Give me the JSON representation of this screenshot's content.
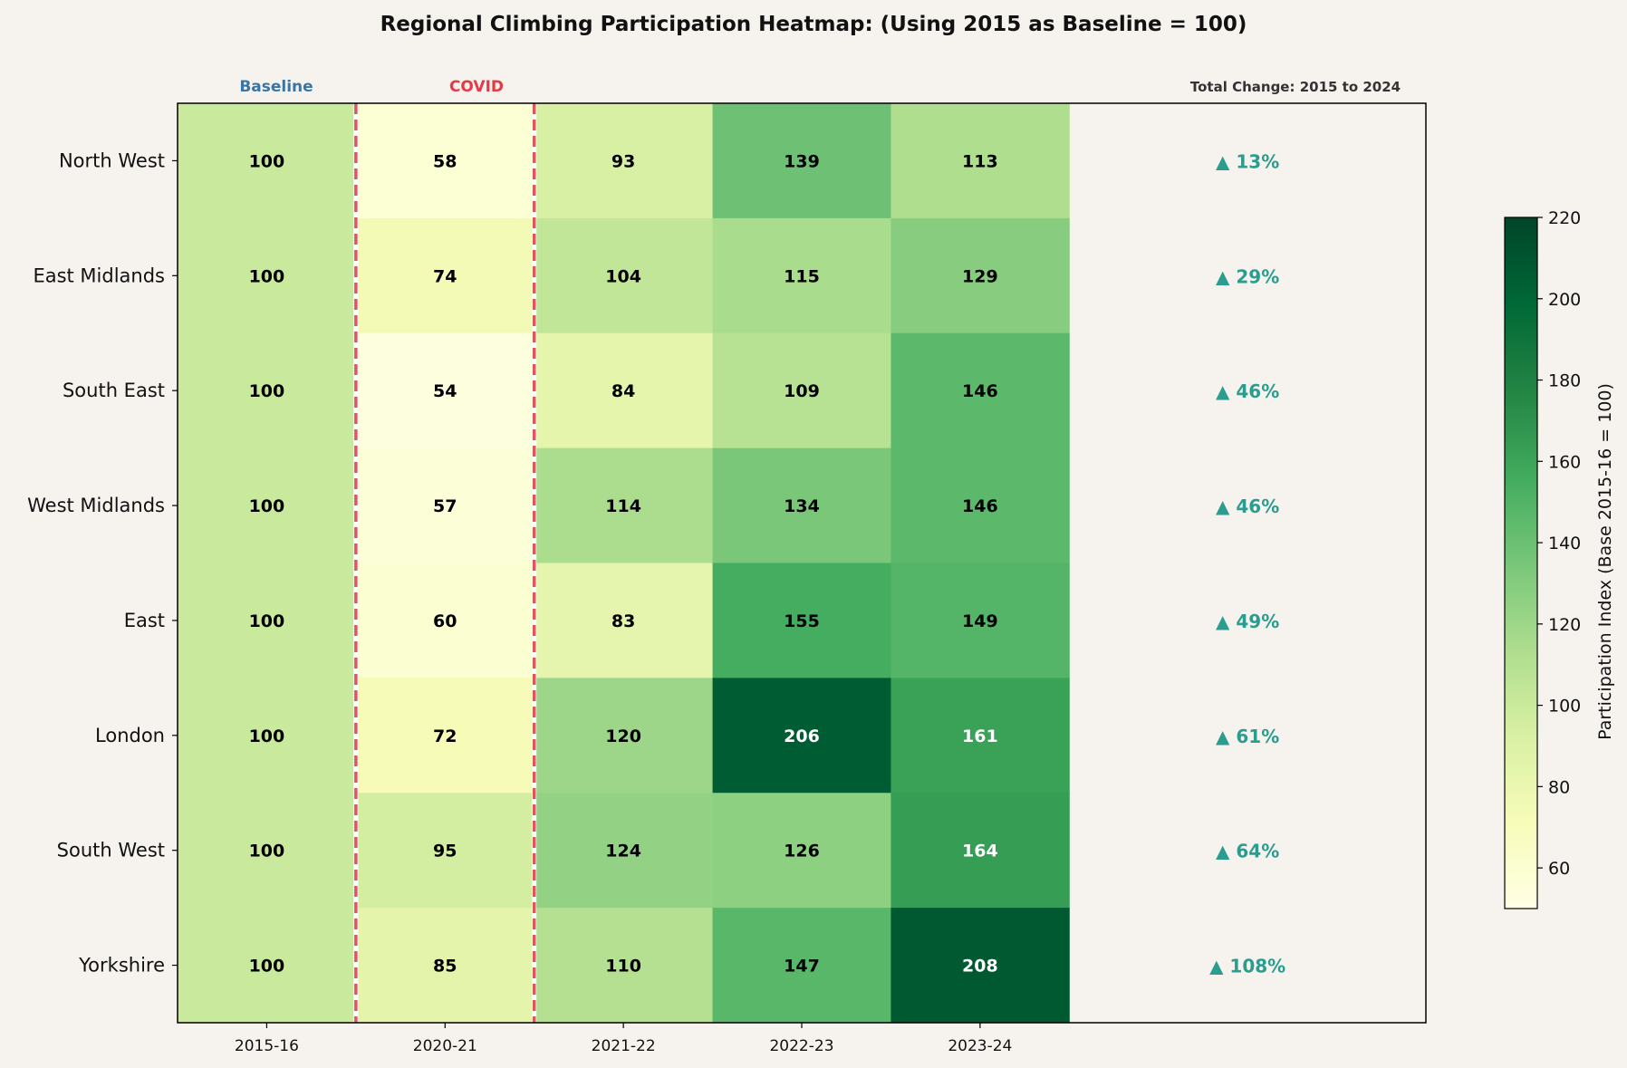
{
  "chart_data": {
    "type": "heatmap",
    "title": "Regional Climbing Participation Heatmap: (Using 2015 as Baseline = 100)",
    "columns": [
      "2015-16",
      "2020-21",
      "2021-22",
      "2022-23",
      "2023-24"
    ],
    "rows": [
      "North West",
      "East Midlands",
      "South East",
      "West Midlands",
      "East",
      "London",
      "South West",
      "Yorkshire"
    ],
    "values": [
      [
        100,
        58,
        93,
        139,
        113
      ],
      [
        100,
        74,
        104,
        115,
        129
      ],
      [
        100,
        54,
        84,
        109,
        146
      ],
      [
        100,
        57,
        114,
        134,
        146
      ],
      [
        100,
        60,
        83,
        155,
        149
      ],
      [
        100,
        72,
        120,
        206,
        161
      ],
      [
        100,
        95,
        124,
        126,
        164
      ],
      [
        100,
        85,
        110,
        147,
        208
      ]
    ],
    "total_change": [
      "▲ 13%",
      "▲ 29%",
      "▲ 46%",
      "▲ 46%",
      "▲ 49%",
      "▲ 61%",
      "▲ 64%",
      "▲ 108%"
    ],
    "column_annotations": {
      "baseline": "Baseline",
      "covid": "COVID",
      "total_change_header": "Total Change: 2015 to 2024"
    },
    "colorbar": {
      "label": "Participation Index (Base 2015-16 = 100)",
      "min": 50,
      "max": 220,
      "ticks": [
        60,
        80,
        100,
        120,
        140,
        160,
        180,
        200,
        220
      ],
      "colormap": "YlGn"
    },
    "colors": {
      "covid_line": "#e05561",
      "baseline_text": "#3b75a4",
      "covid_text": "#e63946",
      "change_text": "#2a9d8f"
    }
  }
}
